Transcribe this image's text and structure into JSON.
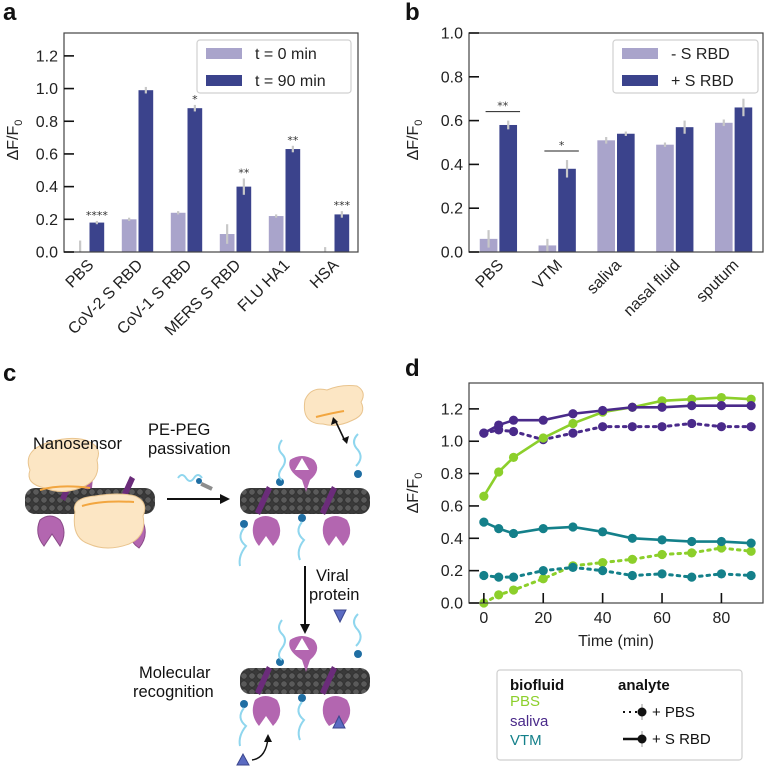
{
  "figure": {
    "panels": [
      "a",
      "b",
      "c",
      "d"
    ]
  },
  "colors": {
    "light_bar": "#a9a4cb",
    "dark_bar": "#3b438c",
    "error_bar": "#c8c8c8",
    "PBS": "#8ccf2b",
    "saliva": "#4a2a8a",
    "VTM": "#14808a"
  },
  "chart_data": [
    {
      "panel": "a",
      "type": "bar",
      "title": "",
      "xlabel": "",
      "ylabel": "ΔF/F0",
      "ylabel_main": "ΔF/F",
      "ylabel_sub": "0",
      "ylim": [
        0,
        1.34
      ],
      "yticks": [
        0.0,
        0.2,
        0.4,
        0.6,
        0.8,
        1.0,
        1.2
      ],
      "ytick_labels": [
        "0.0",
        "0.2",
        "0.4",
        "0.6",
        "0.8",
        "1.0",
        "1.2"
      ],
      "categories": [
        "PBS",
        "CoV-2 S RBD",
        "CoV-1 S RBD",
        "MERS S RBD",
        "FLU HA1",
        "HSA"
      ],
      "series": [
        {
          "name": "t = 0 min",
          "values": [
            0.0,
            0.2,
            0.24,
            0.11,
            0.22,
            0.0
          ],
          "errors": [
            0.07,
            0.01,
            0.01,
            0.06,
            0.01,
            0.03
          ]
        },
        {
          "name": "t = 90 min",
          "values": [
            0.18,
            0.99,
            0.88,
            0.4,
            0.63,
            0.23
          ],
          "errors": [
            0.01,
            0.02,
            0.02,
            0.05,
            0.02,
            0.02
          ]
        }
      ],
      "significance": [
        "****",
        "",
        "*",
        "**",
        "**",
        "***"
      ],
      "legend": {
        "placement": "top-right",
        "entries": [
          "t = 0 min",
          "t = 90 min"
        ]
      },
      "grid": false
    },
    {
      "panel": "b",
      "type": "bar",
      "title": "",
      "xlabel": "",
      "ylabel": "ΔF/F0",
      "ylabel_main": "ΔF/F",
      "ylabel_sub": "0",
      "ylim": [
        0,
        1.0
      ],
      "yticks": [
        0.0,
        0.2,
        0.4,
        0.6,
        0.8,
        1.0
      ],
      "ytick_labels": [
        "0.0",
        "0.2",
        "0.4",
        "0.6",
        "0.8",
        "1.0"
      ],
      "categories": [
        "PBS",
        "VTM",
        "saliva",
        "nasal fluid",
        "sputum"
      ],
      "series": [
        {
          "name": "- S RBD",
          "values": [
            0.06,
            0.03,
            0.51,
            0.49,
            0.59
          ],
          "errors": [
            0.04,
            0.03,
            0.015,
            0.01,
            0.015
          ]
        },
        {
          "name": "+ S RBD",
          "values": [
            0.58,
            0.38,
            0.54,
            0.57,
            0.66
          ],
          "errors": [
            0.02,
            0.04,
            0.01,
            0.03,
            0.04
          ]
        }
      ],
      "significance": [
        "**",
        "*",
        "",
        "",
        ""
      ],
      "legend": {
        "placement": "top-right",
        "entries": [
          "- S RBD",
          "+ S RBD"
        ]
      },
      "grid": false
    },
    {
      "panel": "d",
      "type": "line",
      "title": "",
      "xlabel": "Time (min)",
      "ylabel": "ΔF/F0",
      "ylabel_main": "ΔF/F",
      "ylabel_sub": "0",
      "xlim": [
        -5,
        94
      ],
      "ylim": [
        0,
        1.36
      ],
      "xticks": [
        0,
        20,
        40,
        60,
        80
      ],
      "xtick_labels": [
        "0",
        "20",
        "40",
        "60",
        "80"
      ],
      "yticks": [
        0.0,
        0.2,
        0.4,
        0.6,
        0.8,
        1.0,
        1.2
      ],
      "ytick_labels": [
        "0.0",
        "0.2",
        "0.4",
        "0.6",
        "0.8",
        "1.0",
        "1.2"
      ],
      "x": [
        0,
        5,
        10,
        20,
        30,
        40,
        50,
        60,
        70,
        80,
        90
      ],
      "series": [
        {
          "name": "PBS + S RBD",
          "biofluid": "PBS",
          "analyte": "+ S RBD",
          "style": "solid",
          "values": [
            0.66,
            0.81,
            0.9,
            1.02,
            1.11,
            1.18,
            1.21,
            1.25,
            1.26,
            1.27,
            1.26
          ]
        },
        {
          "name": "PBS + PBS",
          "biofluid": "PBS",
          "analyte": "+ PBS",
          "style": "dotted",
          "values": [
            0.0,
            0.05,
            0.08,
            0.15,
            0.23,
            0.25,
            0.27,
            0.3,
            0.31,
            0.34,
            0.32
          ]
        },
        {
          "name": "saliva + S RBD",
          "biofluid": "saliva",
          "analyte": "+ S RBD",
          "style": "solid",
          "values": [
            1.05,
            1.1,
            1.13,
            1.13,
            1.17,
            1.19,
            1.21,
            1.21,
            1.22,
            1.22,
            1.22
          ]
        },
        {
          "name": "saliva + PBS",
          "biofluid": "saliva",
          "analyte": "+ PBS",
          "style": "dotted",
          "values": [
            1.05,
            1.07,
            1.06,
            1.01,
            1.05,
            1.09,
            1.09,
            1.09,
            1.11,
            1.09,
            1.09
          ]
        },
        {
          "name": "VTM + S RBD",
          "biofluid": "VTM",
          "analyte": "+ S RBD",
          "style": "solid",
          "values": [
            0.5,
            0.46,
            0.43,
            0.46,
            0.47,
            0.44,
            0.4,
            0.39,
            0.38,
            0.38,
            0.37
          ]
        },
        {
          "name": "VTM + PBS",
          "biofluid": "VTM",
          "analyte": "+ PBS",
          "style": "dotted",
          "values": [
            0.17,
            0.16,
            0.16,
            0.2,
            0.22,
            0.2,
            0.17,
            0.18,
            0.16,
            0.18,
            0.17
          ]
        }
      ],
      "legend": {
        "placement": "below",
        "biofluid_header": "biofluid",
        "analyte_header": "analyte",
        "biofluids": [
          "PBS",
          "saliva",
          "VTM"
        ],
        "analytes": [
          "+ PBS",
          "+ S RBD"
        ]
      },
      "grid": false
    }
  ],
  "diagram": {
    "panel": "c",
    "labels": {
      "nanosensor": "Nanosensor",
      "passivation_line1": "PE-PEG",
      "passivation_line2": "passivation",
      "viral_line1": "Viral",
      "viral_line2": "protein",
      "recognition_line1": "Molecular",
      "recognition_line2": "recognition"
    }
  }
}
